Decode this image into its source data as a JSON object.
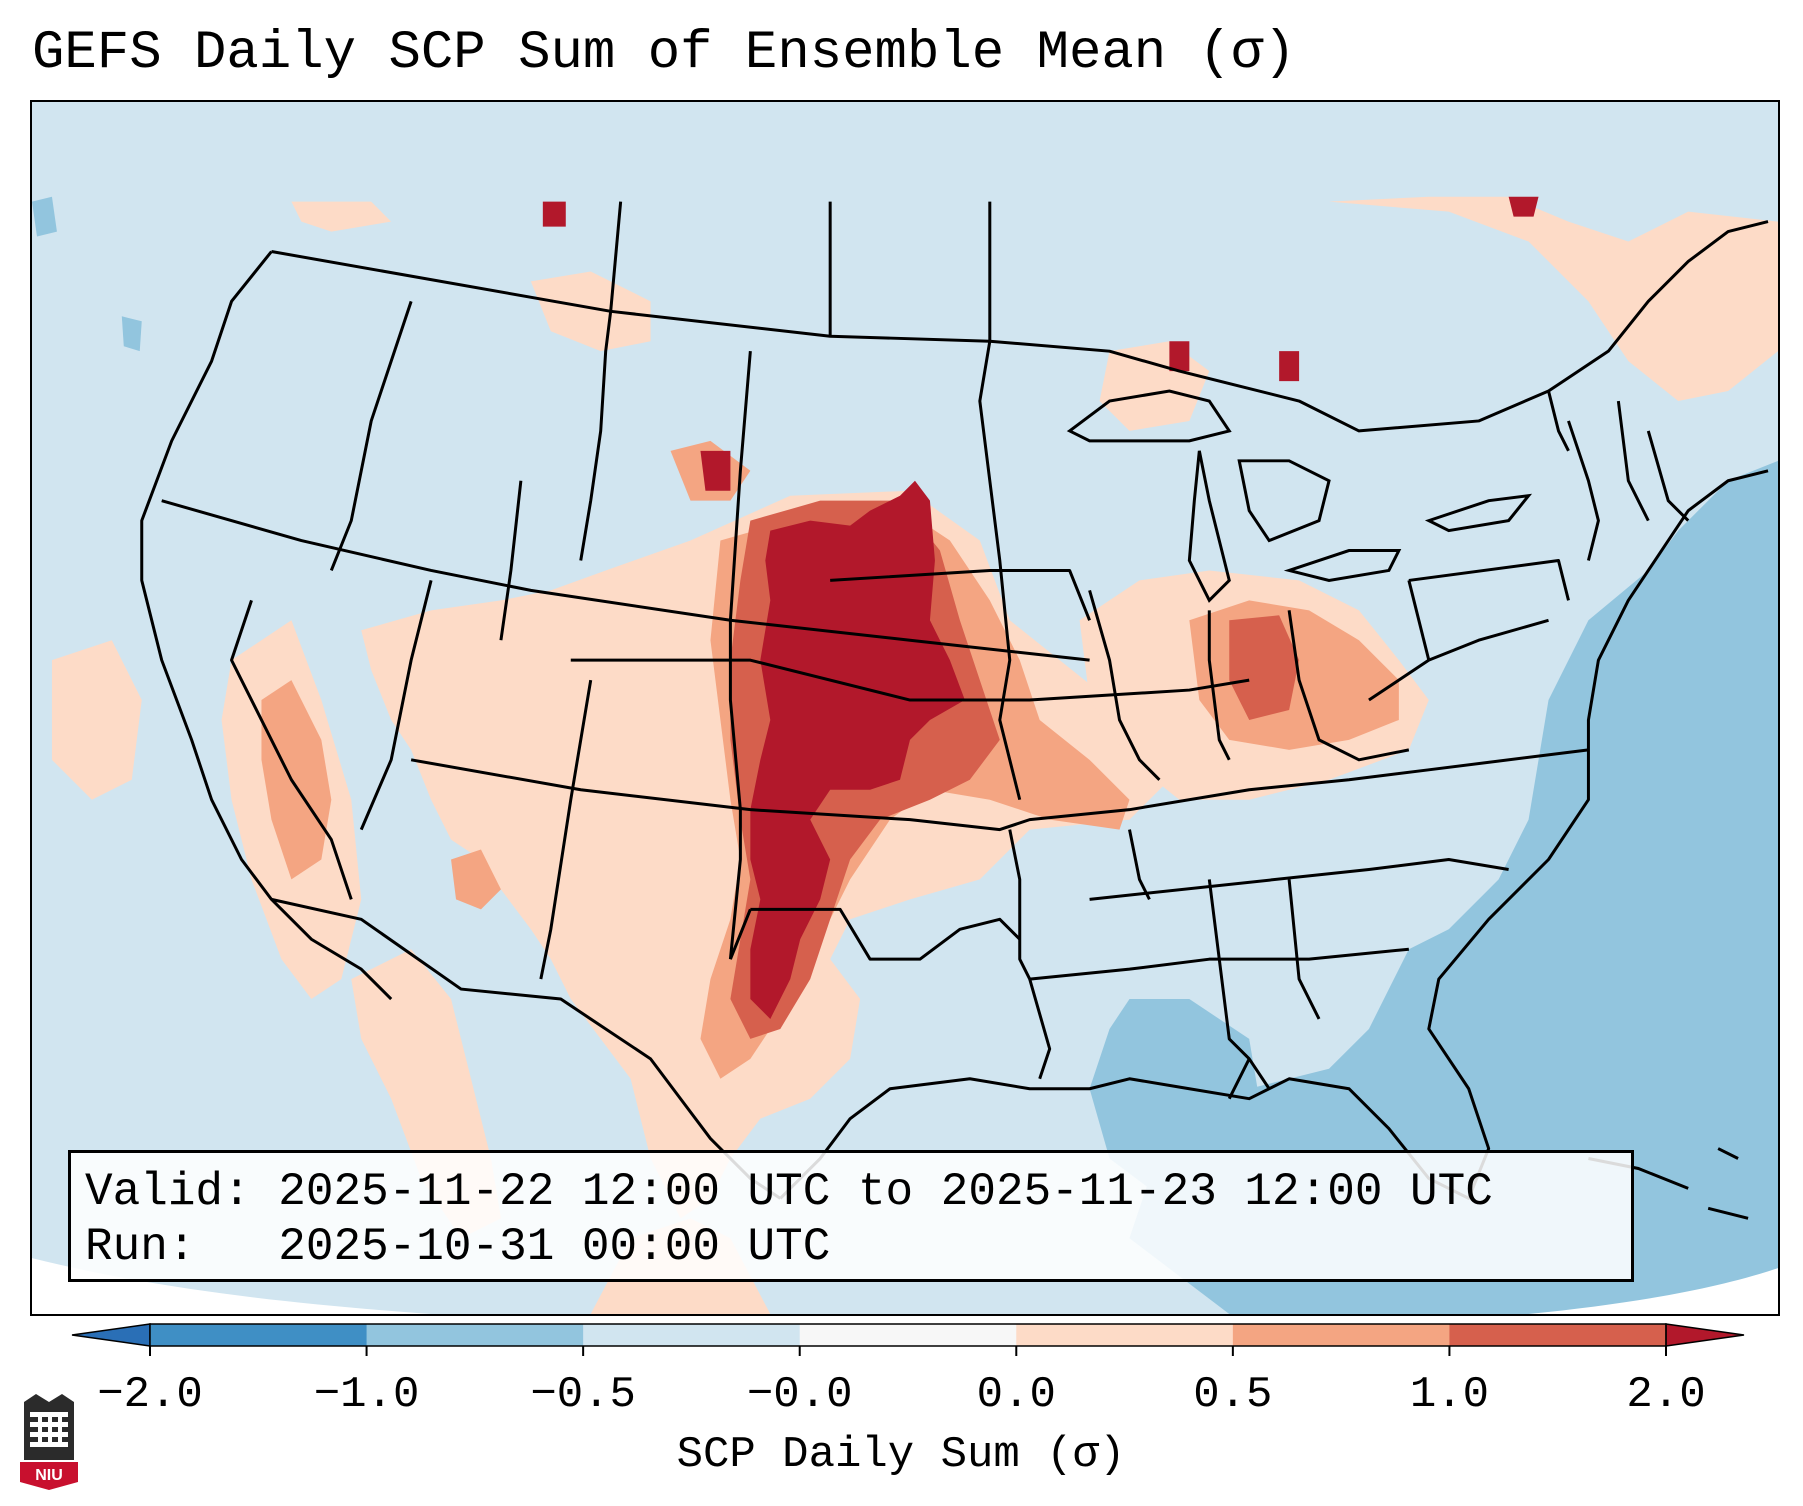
{
  "title": "GEFS Daily SCP Sum of Ensemble Mean (σ)",
  "info_box": {
    "valid_label": "Valid:",
    "valid_value": "2025-11-22 12:00 UTC to 2025-11-23 12:00 UTC",
    "run_label": "Run:",
    "run_value": "2025-10-31 00:00 UTC"
  },
  "colorbar": {
    "label": "SCP Daily Sum (σ)",
    "ticks": [
      "−2.0",
      "−1.0",
      "−0.5",
      "−0.0",
      "0.0",
      "0.5",
      "1.0",
      "2.0"
    ],
    "bins": [
      {
        "range": "< -2.0",
        "color": "#2a6fb6"
      },
      {
        "range": "-2.0 to -1.0",
        "color": "#3f8fc5"
      },
      {
        "range": "-1.0 to -0.5",
        "color": "#92c5de"
      },
      {
        "range": "-0.5 to -0.0",
        "color": "#d1e5f0"
      },
      {
        "range": "-0.0 to 0.0",
        "color": "#f7f7f7"
      },
      {
        "range": "0.0 to 0.5",
        "color": "#fddbc7"
      },
      {
        "range": "0.5 to 1.0",
        "color": "#f4a582"
      },
      {
        "range": "1.0 to 2.0",
        "color": "#d6604d"
      },
      {
        "range": "> 2.0",
        "color": "#b2182b"
      }
    ]
  },
  "map": {
    "region": "Continental United States",
    "max_anomaly_area": "Central Plains (Nebraska, Kansas, western Oklahoma, Texas Panhandle)",
    "secondary_anomaly_area": "Indiana / Ohio Valley",
    "ocean_negative_area": "Gulf of Mexico and western Atlantic"
  },
  "logo": {
    "text": "NIU",
    "name": "niu-logo"
  }
}
